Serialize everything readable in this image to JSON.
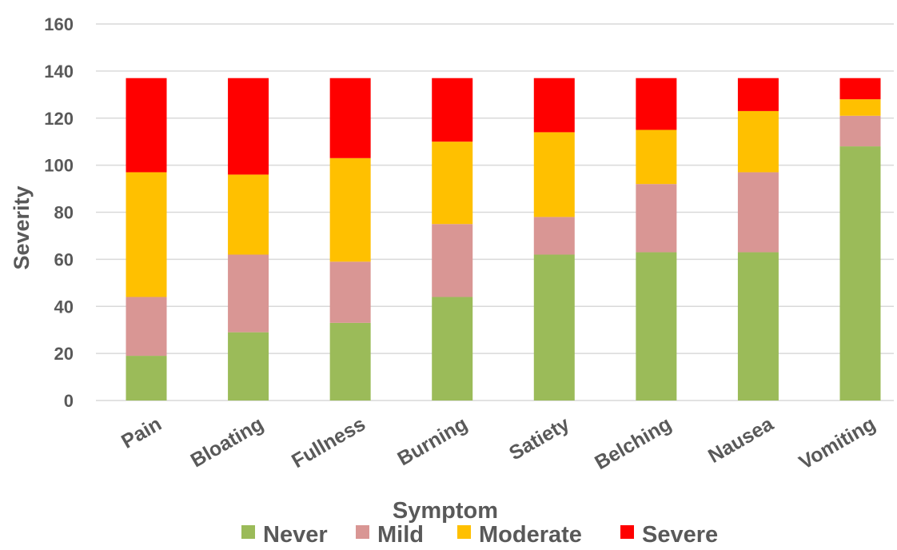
{
  "chart_data": {
    "type": "bar",
    "stacked": true,
    "title": "",
    "xlabel": "Symptom",
    "ylabel": "Severity",
    "ylim": [
      0,
      160
    ],
    "yticks": [
      0,
      20,
      40,
      60,
      80,
      100,
      120,
      140,
      160
    ],
    "grid": true,
    "legend_position": "bottom",
    "categories": [
      "Pain",
      "Bloating",
      "Fullness",
      "Burning",
      "Satiety",
      "Belching",
      "Nausea",
      "Vomiting"
    ],
    "series": [
      {
        "name": "Never",
        "color": "#9BBB59",
        "values": [
          19,
          29,
          33,
          44,
          62,
          63,
          63,
          108
        ]
      },
      {
        "name": "Mild",
        "color": "#D99694",
        "values": [
          25,
          33,
          26,
          31,
          16,
          29,
          34,
          13
        ]
      },
      {
        "name": "Moderate",
        "color": "#FFC000",
        "values": [
          53,
          34,
          44,
          35,
          36,
          23,
          26,
          7
        ]
      },
      {
        "name": "Severe",
        "color": "#FF0000",
        "values": [
          40,
          41,
          34,
          27,
          23,
          22,
          14,
          9
        ]
      }
    ]
  },
  "colors": {
    "axis_text": "#595959",
    "gridline": "#D9D9D9"
  }
}
